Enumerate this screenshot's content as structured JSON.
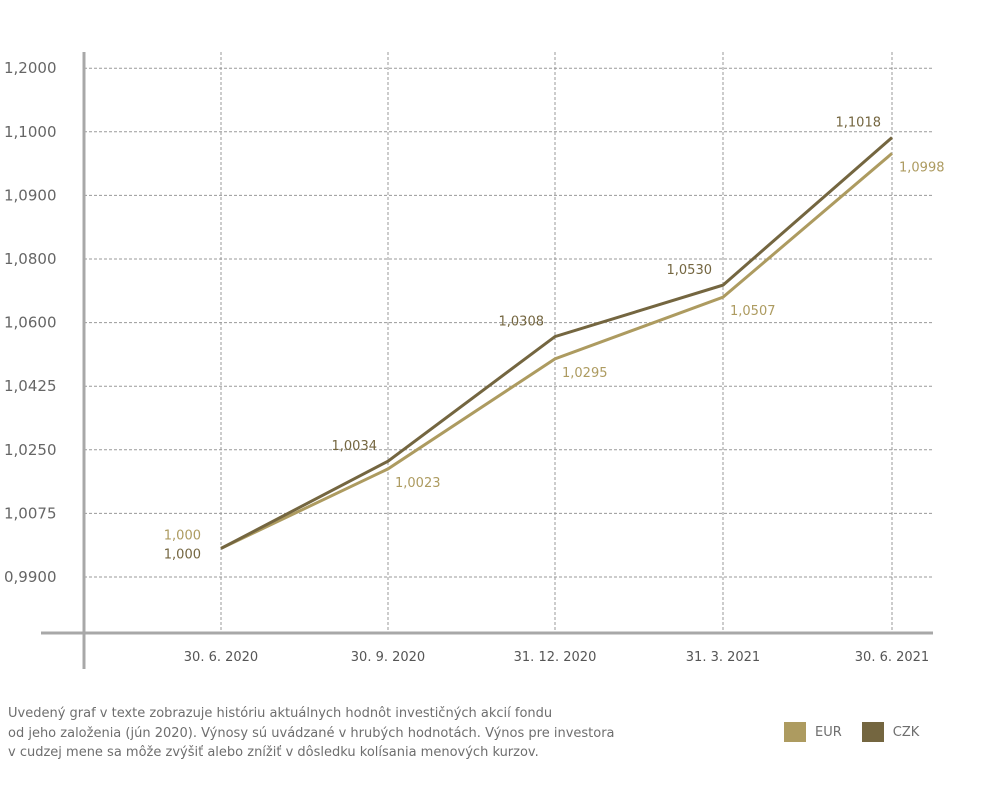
{
  "chart_data": {
    "type": "line",
    "categories": [
      "30. 6. 2020",
      "30. 9. 2020",
      "31. 12. 2020",
      "31. 3. 2021",
      "30. 6. 2021"
    ],
    "y_ticks": [
      "0,9900",
      "1,0075",
      "1,0250",
      "1,0425",
      "1,0600",
      "1,0800",
      "1,0900",
      "1,1000",
      "1,2000"
    ],
    "series": [
      {
        "name": "EUR",
        "color": "#ad9b60",
        "y_tick_positions": [
          0.45,
          1.7,
          3.43,
          4.4,
          6.66
        ],
        "labels": [
          "1,000",
          "1,0023",
          "1,0295",
          "1,0507",
          "1,0998"
        ]
      },
      {
        "name": "CZK",
        "color": "#746640",
        "y_tick_positions": [
          0.45,
          1.82,
          3.78,
          4.59,
          6.91
        ],
        "labels": [
          "1,000",
          "1,0034",
          "1,0308",
          "1,0530",
          "1,1018"
        ]
      }
    ],
    "grid": true,
    "legend": "bottom-right"
  },
  "note_lines": [
    "Uvedený graf v texte zobrazuje históriu aktuálnych hodnôt investičných akcií fondu",
    "od jeho založenia (jún 2020). Výnosy sú uvádzané v hrubých hodnotách. Výnos pre investora",
    "v cudzej mene sa môže zvýšiť alebo znížiť v dôsledku kolísania menových kurzov."
  ]
}
